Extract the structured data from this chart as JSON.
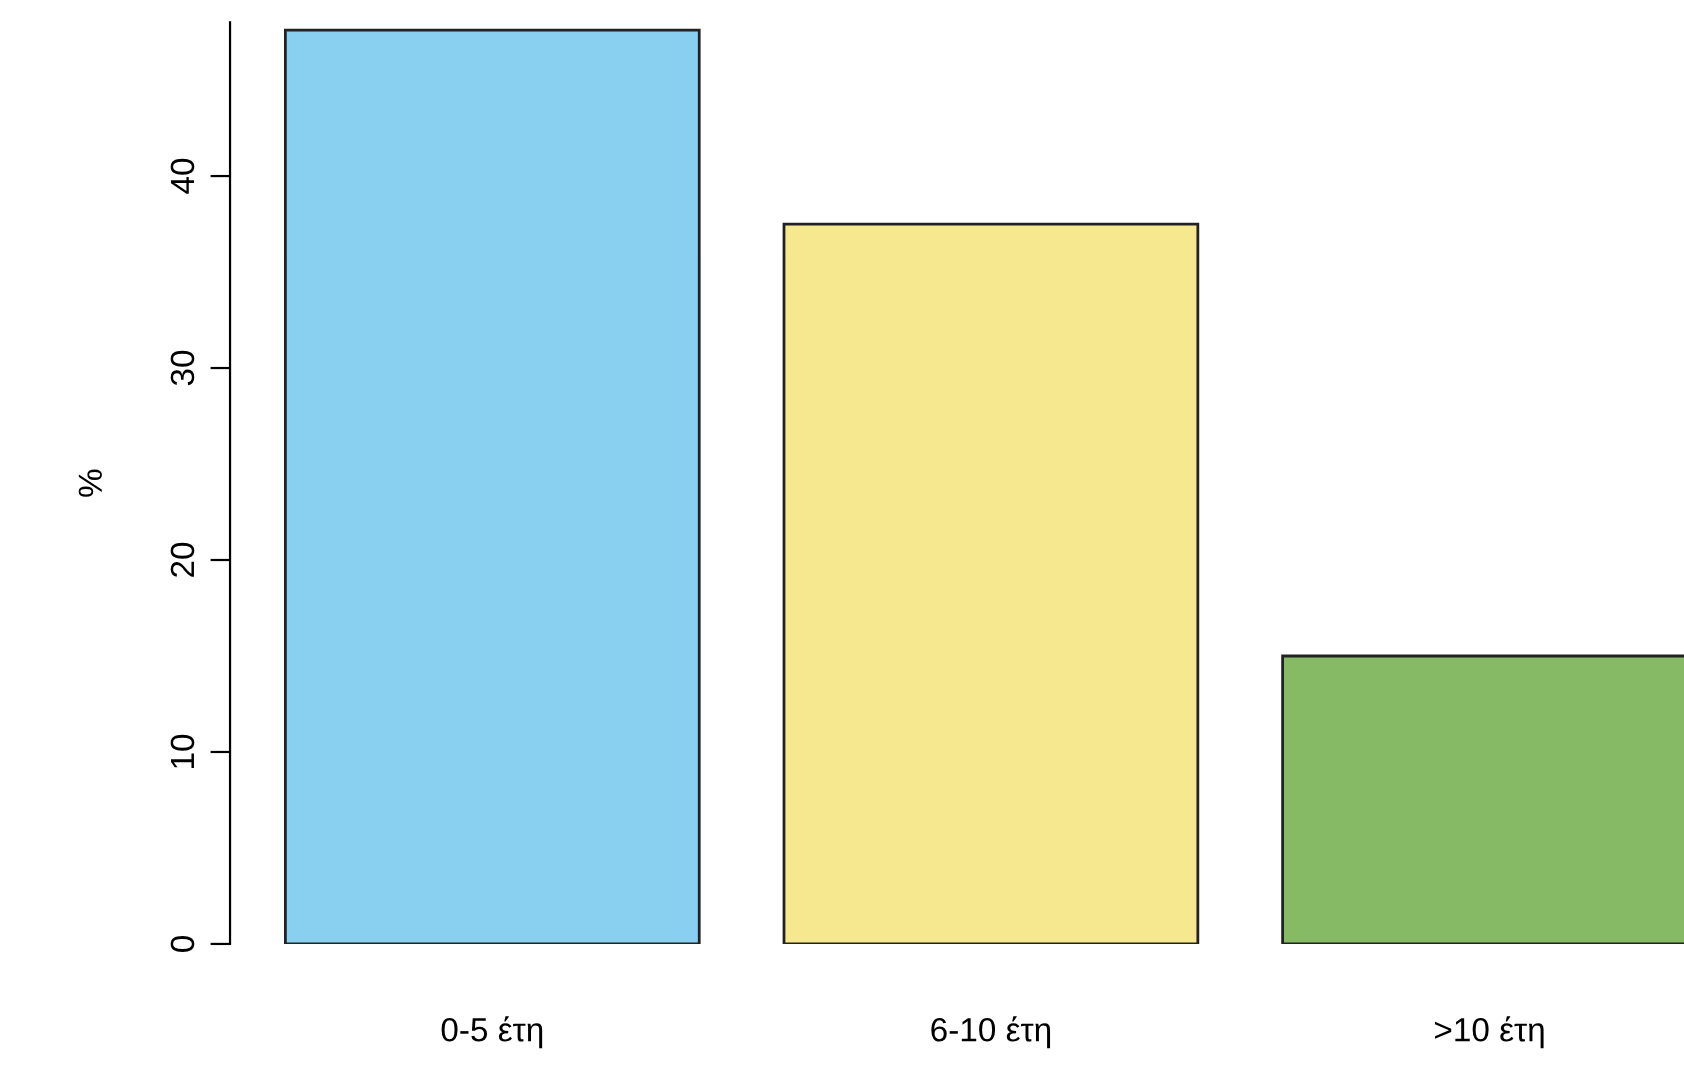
{
  "chart_data": {
    "type": "bar",
    "ylabel": "%",
    "categories": [
      "0-5 έτη",
      "6-10 έτη",
      ">10 έτη"
    ],
    "values": [
      47.6,
      37.5,
      15.0
    ],
    "colors": [
      "#89cff0",
      "#f5e88e",
      "#86ba64"
    ],
    "ylim": [
      0,
      48
    ],
    "yticks": [
      0,
      10,
      20,
      30,
      40
    ],
    "grid": false,
    "legend": false
  }
}
